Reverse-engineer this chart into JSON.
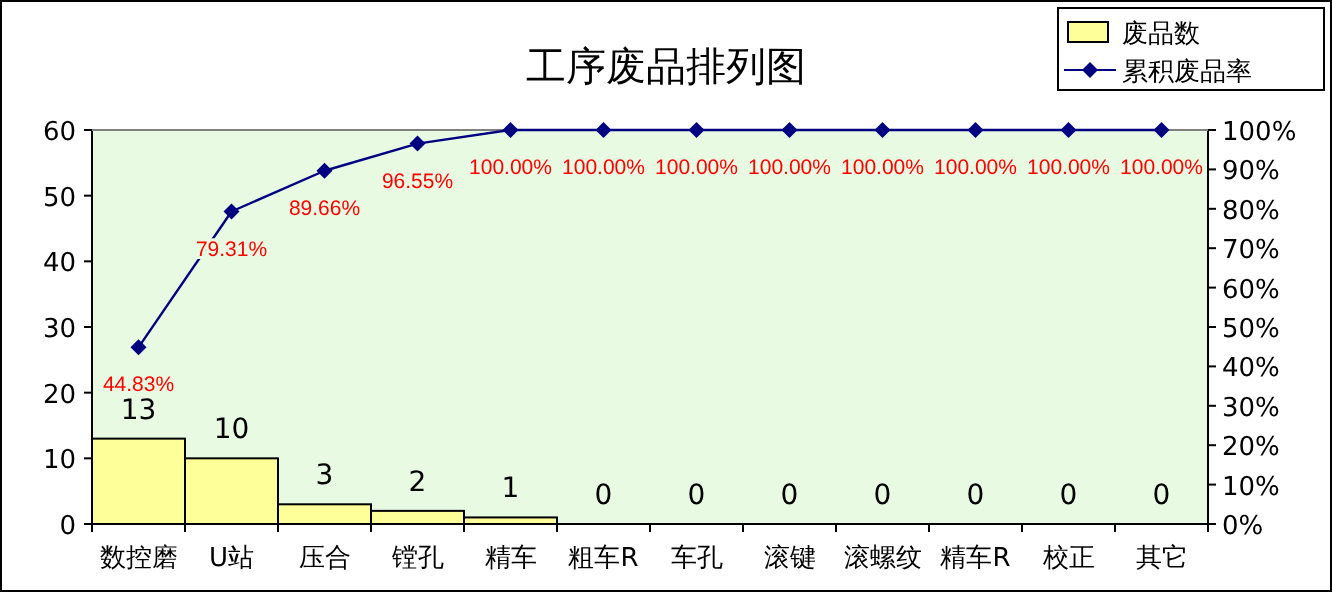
{
  "chart_data": {
    "type": "bar",
    "title": "工序废品排列图",
    "categories": [
      "数控磨",
      "U站",
      "压合",
      "镗孔",
      "精车",
      "粗车R",
      "车孔",
      "滚键",
      "滚螺纹",
      "精车R",
      "校正",
      "其它"
    ],
    "ylim": [
      0,
      60
    ],
    "yticks": [
      0,
      10,
      20,
      30,
      40,
      50,
      60
    ],
    "y2lim": [
      0,
      100
    ],
    "y2ticks": [
      {
        "value": 0,
        "label": "0%"
      },
      {
        "value": 10,
        "label": "10%"
      },
      {
        "value": 20,
        "label": "20%"
      },
      {
        "value": 30,
        "label": "30%"
      },
      {
        "value": 40,
        "label": "40%"
      },
      {
        "value": 50,
        "label": "50%"
      },
      {
        "value": 60,
        "label": "60%"
      },
      {
        "value": 70,
        "label": "70%"
      },
      {
        "value": 80,
        "label": "80%"
      },
      {
        "value": 90,
        "label": "90%"
      },
      {
        "value": 100,
        "label": "100%"
      }
    ],
    "legend": "top right",
    "grid": false,
    "series": [
      {
        "name": "废品数",
        "type": "bar",
        "color": "#ffff99",
        "values": [
          13,
          10,
          3,
          2,
          1,
          0,
          0,
          0,
          0,
          0,
          0,
          0
        ],
        "value_labels": [
          "13",
          "10",
          "3",
          "2",
          "1",
          "0",
          "0",
          "0",
          "0",
          "0",
          "0",
          "0"
        ]
      },
      {
        "name": "累积废品率",
        "type": "line",
        "axis": "y2",
        "color": "#000080",
        "marker": "diamond",
        "values": [
          44.83,
          79.31,
          89.66,
          96.55,
          100,
          100,
          100,
          100,
          100,
          100,
          100,
          100
        ],
        "value_labels": [
          "44.83%",
          "79.31%",
          "89.66%",
          "96.55%",
          "100.00%",
          "100.00%",
          "100.00%",
          "100.00%",
          "100.00%",
          "100.00%",
          "100.00%",
          "100.00%"
        ]
      }
    ]
  }
}
